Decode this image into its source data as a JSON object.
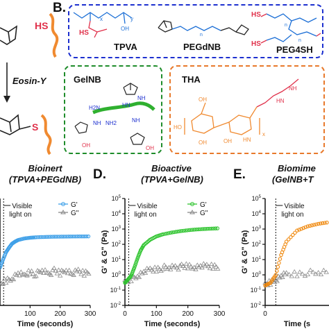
{
  "panel_b": {
    "letter": "B.",
    "polymers": {
      "tpva": "TPVA",
      "pegdnb": "PEGdNB",
      "peg4sh": "PEG4SH"
    },
    "gelnb_label": "GelNB",
    "tha_label": "THA",
    "chem_text": {
      "hs1": "HS",
      "hs2": "HS",
      "hs3": "HS",
      "tpva_x": "x",
      "tpva_y": "y",
      "tpva_oh": "OH",
      "pegdnb_n": "n",
      "peg4sh_n1": "n",
      "peg4sh_n2": "n",
      "gelnb_h2n": "H2N",
      "gelnb_nh2": "NH2",
      "gelnb_nh": "NH",
      "gelnb_hn": "HN",
      "gelnb_nh_b": "NH",
      "gelnb_nh_c": "NH",
      "gelnb_oh_l": "OH",
      "gelnb_oh_r": "OH",
      "tha_hn": "HN",
      "tha_nh": "NH",
      "tha_oh1": "OH",
      "tha_oh2": "OH",
      "tha_oh3": "OH",
      "tha_ho": "HO",
      "tha_hn2": "HN",
      "tha_x": "x"
    }
  },
  "panel_a": {
    "hs": "HS",
    "s": "S",
    "reaction": "Eosin-Y"
  },
  "colors": {
    "blue_box": "#1c2fcf",
    "green_box": "#1e8c2a",
    "orange_box": "#e8792b",
    "thiol_red": "#e0304a",
    "orange_line": "#f08a30",
    "blue_series": "#3fa0e8",
    "green_series": "#2fc42f",
    "orange_series": "#f08a10",
    "gray_series": "#8a8a8a"
  },
  "plots": [
    {
      "letter": "",
      "title_line1": "Bioinert",
      "title_line2": "(TPVA+PEGdNB)",
      "show_ylabel": false,
      "xlabel": "Time (seconds)",
      "annotation_lines": [
        "Visible",
        "light on"
      ],
      "legend": [
        "G'",
        "G\""
      ]
    },
    {
      "letter": "D.",
      "title_line1": "Bioactive",
      "title_line2": "(TPVA+GelNB)",
      "show_ylabel": true,
      "ylabel": "G' & G\" (Pa)",
      "xlabel": "Time (seconds)",
      "annotation_lines": [
        "Visible",
        "light on"
      ],
      "legend": [
        "G'",
        "G\""
      ]
    },
    {
      "letter": "E.",
      "title_line1": "Biomime",
      "title_line2": "(GelNB+T",
      "show_ylabel": true,
      "ylabel": "G' & G\" (Pa)",
      "xlabel": "Time (s",
      "annotation_lines": [
        "Visible",
        "light on"
      ],
      "legend": []
    }
  ],
  "chart_data": [
    {
      "type": "scatter",
      "title": "Bioinert (TPVA+PEGdNB)",
      "xlabel": "Time (seconds)",
      "ylabel": "",
      "yscale": "log",
      "xlim": [
        0,
        300
      ],
      "xticks": [
        100,
        200,
        300
      ],
      "series": [
        {
          "name": "G'",
          "x": [
            0,
            10,
            20,
            30,
            40,
            50,
            60,
            80,
            100,
            120,
            150,
            180,
            210,
            240,
            270,
            300
          ],
          "y": [
            3,
            10,
            30,
            60,
            110,
            150,
            190,
            240,
            270,
            290,
            305,
            315,
            320,
            325,
            328,
            330
          ]
        },
        {
          "name": "G\"",
          "x": [
            0,
            20,
            40,
            60,
            80,
            100,
            120,
            140,
            160,
            180,
            200,
            220,
            240,
            260,
            280,
            300
          ],
          "y": [
            0.2,
            0.4,
            0.6,
            1.2,
            0.8,
            1.6,
            1.0,
            2.0,
            1.1,
            1.8,
            1.2,
            2.2,
            1.0,
            1.7,
            1.3,
            1.9
          ]
        }
      ]
    },
    {
      "type": "scatter",
      "title": "Bioactive (TPVA+GelNB)",
      "xlabel": "Time (seconds)",
      "ylabel": "G' & G\" (Pa)",
      "yscale": "log",
      "ylim": [
        0.01,
        100000
      ],
      "xlim": [
        0,
        300
      ],
      "xticks": [
        0,
        100,
        200,
        300
      ],
      "yticks": [
        "10-2",
        "10-1",
        "100",
        "101",
        "102",
        "103",
        "104",
        "105"
      ],
      "series": [
        {
          "name": "G'",
          "x": [
            0,
            10,
            20,
            30,
            40,
            50,
            60,
            80,
            100,
            120,
            150,
            180,
            210,
            240,
            270,
            300
          ],
          "y": [
            0.3,
            0.5,
            0.9,
            3,
            12,
            40,
            90,
            200,
            330,
            450,
            600,
            750,
            880,
            980,
            1060,
            1120
          ]
        },
        {
          "name": "G\"",
          "x": [
            0,
            20,
            40,
            60,
            80,
            100,
            120,
            140,
            160,
            180,
            200,
            220,
            240,
            260,
            280,
            300
          ],
          "y": [
            0.3,
            0.5,
            0.9,
            1.5,
            2.0,
            2.4,
            2.8,
            3.0,
            3.2,
            3.3,
            3.5,
            3.4,
            3.6,
            3.5,
            3.7,
            3.8
          ]
        }
      ]
    },
    {
      "type": "scatter",
      "title": "Biomime (GelNB+T",
      "xlabel": "Time (s",
      "ylabel": "G' & G\" (Pa)",
      "yscale": "log",
      "ylim": [
        0.01,
        100000
      ],
      "xlim": [
        0,
        60
      ],
      "xticks": [
        0
      ],
      "yticks": [
        "10-2",
        "10-1",
        "100",
        "101",
        "102",
        "103",
        "104",
        "105"
      ],
      "series": [
        {
          "name": "G'",
          "x": [
            0,
            5,
            10,
            15,
            20,
            30,
            40,
            50,
            60
          ],
          "y": [
            0.2,
            0.3,
            1,
            20,
            150,
            800,
            1500,
            2200,
            2800
          ]
        },
        {
          "name": "G\"",
          "x": [
            0,
            5,
            10,
            15,
            20,
            30,
            40,
            50,
            60
          ],
          "y": [
            0.2,
            0.3,
            0.5,
            0.8,
            1.0,
            1.2,
            1.3,
            1.4,
            1.5
          ]
        }
      ]
    }
  ]
}
